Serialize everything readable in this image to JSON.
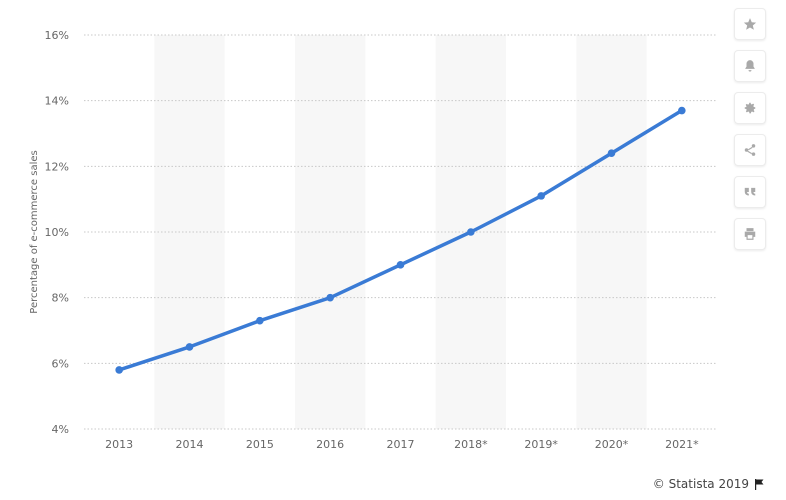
{
  "chart_data": {
    "type": "line",
    "x": [
      "2013",
      "2014",
      "2015",
      "2016",
      "2017",
      "2018*",
      "2019*",
      "2020*",
      "2021*"
    ],
    "series": [
      {
        "values": [
          5.8,
          6.5,
          7.3,
          8.0,
          9.0,
          10.0,
          11.1,
          12.4,
          13.7
        ]
      }
    ],
    "ylabel": "Percentage of e-commerce sales",
    "ylim": [
      4,
      16
    ],
    "yticks": [
      4,
      6,
      8,
      10,
      12,
      14,
      16
    ],
    "ytick_labels": [
      "4%",
      "6%",
      "8%",
      "10%",
      "12%",
      "14%",
      "16%"
    ],
    "grid": true,
    "line_color": "#3a7bd5",
    "band_color": "#f7f7f7"
  },
  "toolbar": {
    "icons": [
      "star-icon",
      "bell-icon",
      "gear-icon",
      "share-icon",
      "quote-icon",
      "print-icon"
    ]
  },
  "credit": {
    "text": "© Statista 2019"
  }
}
